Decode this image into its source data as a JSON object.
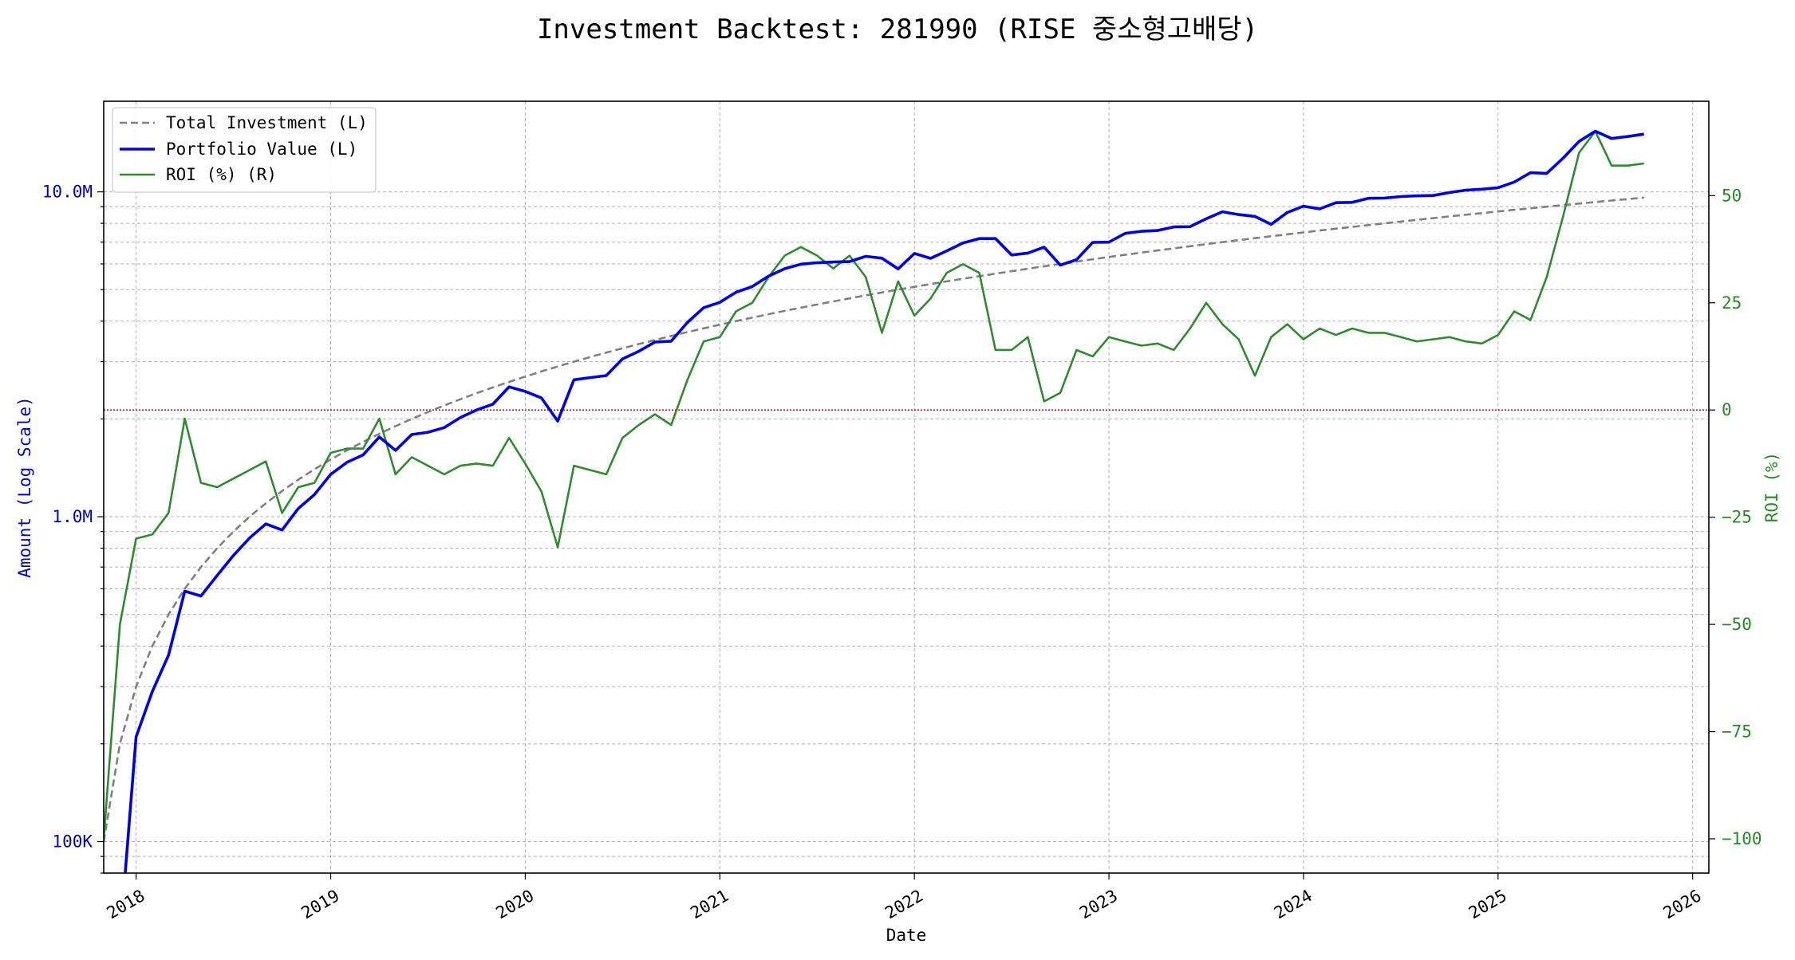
{
  "colors": {
    "left_axis": "#0000cc",
    "right_axis": "#228B22",
    "investment": "#808080",
    "portfolio": "#0000e6",
    "roi": "#2e8b2e",
    "zero_line": "#b22222",
    "grid": "#b0b0b0"
  },
  "chart_data": {
    "type": "line",
    "title": "Investment Backtest: 281990 (RISE 중소형고배당)",
    "xlabel": "Date",
    "ylabel_left": "Amount (Log Scale)",
    "ylabel_right": "ROI (%)",
    "x_ticks": [
      "2018",
      "2019",
      "2020",
      "2021",
      "2022",
      "2023",
      "2024",
      "2025",
      "2026"
    ],
    "y_left_scale": "log",
    "y_left_range": [
      80000,
      19000000
    ],
    "y_left_ticks": [
      {
        "value": 100000,
        "label": "100K"
      },
      {
        "value": 1000000,
        "label": "1.0M"
      },
      {
        "value": 10000000,
        "label": "10.0M"
      }
    ],
    "y_right_range": [
      -108,
      72
    ],
    "y_right_ticks": [
      {
        "value": -100,
        "label": "−100"
      },
      {
        "value": -75,
        "label": "−75"
      },
      {
        "value": -50,
        "label": "−50"
      },
      {
        "value": -25,
        "label": "−25"
      },
      {
        "value": 0,
        "label": "0"
      },
      {
        "value": 25,
        "label": "25"
      },
      {
        "value": 50,
        "label": "50"
      }
    ],
    "grid": true,
    "legend_position": "top-left",
    "x": [
      "2017-11",
      "2017-12",
      "2018-01",
      "2018-02",
      "2018-03",
      "2018-04",
      "2018-05",
      "2018-06",
      "2018-07",
      "2018-08",
      "2018-09",
      "2018-10",
      "2018-11",
      "2018-12",
      "2019-01",
      "2019-02",
      "2019-03",
      "2019-04",
      "2019-05",
      "2019-06",
      "2019-07",
      "2019-08",
      "2019-09",
      "2019-10",
      "2019-11",
      "2019-12",
      "2020-01",
      "2020-02",
      "2020-03",
      "2020-04",
      "2020-05",
      "2020-06",
      "2020-07",
      "2020-08",
      "2020-09",
      "2020-10",
      "2020-11",
      "2020-12",
      "2021-01",
      "2021-02",
      "2021-03",
      "2021-04",
      "2021-05",
      "2021-06",
      "2021-07",
      "2021-08",
      "2021-09",
      "2021-10",
      "2021-11",
      "2021-12",
      "2022-01",
      "2022-02",
      "2022-03",
      "2022-04",
      "2022-05",
      "2022-06",
      "2022-07",
      "2022-08",
      "2022-09",
      "2022-10",
      "2022-11",
      "2022-12",
      "2023-01",
      "2023-02",
      "2023-03",
      "2023-04",
      "2023-05",
      "2023-06",
      "2023-07",
      "2023-08",
      "2023-09",
      "2023-10",
      "2023-11",
      "2023-12",
      "2024-01",
      "2024-02",
      "2024-03",
      "2024-04",
      "2024-05",
      "2024-06",
      "2024-07",
      "2024-08",
      "2024-09",
      "2024-10",
      "2024-11",
      "2024-12",
      "2025-01",
      "2025-02",
      "2025-03",
      "2025-04",
      "2025-05",
      "2025-06",
      "2025-07",
      "2025-08",
      "2025-09",
      "2025-10"
    ],
    "series": [
      {
        "name": "Total Investment (L)",
        "axis": "left",
        "style": "dashed",
        "values": [
          100000,
          200000,
          300000,
          400000,
          500000,
          600000,
          700000,
          800000,
          900000,
          1000000,
          1100000,
          1200000,
          1300000,
          1400000,
          1500000,
          1600000,
          1700000,
          1800000,
          1900000,
          2000000,
          2100000,
          2200000,
          2300000,
          2400000,
          2500000,
          2600000,
          2700000,
          2800000,
          2900000,
          3000000,
          3100000,
          3200000,
          3300000,
          3400000,
          3500000,
          3600000,
          3700000,
          3800000,
          3900000,
          4000000,
          4100000,
          4200000,
          4300000,
          4400000,
          4500000,
          4600000,
          4700000,
          4800000,
          4900000,
          5000000,
          5100000,
          5200000,
          5300000,
          5400000,
          5500000,
          5600000,
          5700000,
          5800000,
          5900000,
          6000000,
          6100000,
          6200000,
          6300000,
          6400000,
          6500000,
          6600000,
          6700000,
          6800000,
          6900000,
          7000000,
          7100000,
          7200000,
          7300000,
          7400000,
          7500000,
          7600000,
          7700000,
          7800000,
          7900000,
          8000000,
          8100000,
          8200000,
          8300000,
          8400000,
          8500000,
          8600000,
          8700000,
          8800000,
          8900000,
          9000000,
          9100000,
          9200000,
          9300000,
          9400000,
          9500000,
          9600000
        ]
      },
      {
        "name": "Portfolio Value (L)",
        "axis": "left",
        "style": "solid",
        "values": [
          null,
          50000,
          210000,
          290000,
          375000,
          590000,
          570000,
          660000,
          760000,
          860000,
          950000,
          910000,
          1060000,
          1170000,
          1350000,
          1470000,
          1550000,
          1760000,
          1600000,
          1790000,
          1820000,
          1880000,
          2020000,
          2130000,
          2220000,
          2510000,
          2430000,
          2320000,
          1970000,
          2640000,
          2680000,
          2720000,
          3060000,
          3230000,
          3450000,
          3470000,
          3960000,
          4400000,
          4570000,
          4910000,
          5110000,
          5500000,
          5800000,
          5990000,
          6050000,
          6080000,
          6100000,
          6330000,
          6250000,
          5790000,
          6460000,
          6240000,
          6580000,
          6960000,
          7180000,
          7180000,
          6390000,
          6480000,
          6760000,
          5950000,
          6180000,
          6990000,
          7000000,
          7450000,
          7560000,
          7600000,
          7800000,
          7810000,
          8260000,
          8680000,
          8510000,
          8400000,
          7940000,
          8640000,
          9030000,
          8860000,
          9260000,
          9280000,
          9550000,
          9570000,
          9670000,
          9720000,
          9740000,
          9950000,
          10120000,
          10190000,
          10300000,
          10720000,
          11450000,
          11400000,
          12680000,
          14300000,
          15370000,
          14590000,
          14800000,
          15050000
        ]
      },
      {
        "name": "ROI (%) (R)",
        "axis": "right",
        "style": "solid",
        "values": [
          -100,
          -50,
          -30,
          -29,
          -24,
          -2,
          -17,
          -18,
          -16,
          -14,
          -12,
          -24,
          -18,
          -17,
          -10,
          -9,
          -9,
          -2,
          -15,
          -11,
          -13,
          -15,
          -13,
          -12.5,
          -13,
          -6.5,
          -12.5,
          -19,
          -32,
          -13,
          -14,
          -15,
          -6.5,
          -3.5,
          -1,
          -3.5,
          7,
          16,
          17,
          23,
          25,
          31,
          36,
          38,
          36,
          33,
          36,
          31,
          18,
          30,
          22,
          26,
          32,
          34,
          32,
          14,
          14,
          17,
          2,
          4,
          14,
          12.5,
          17,
          16,
          15,
          15.5,
          14,
          19,
          25,
          20,
          16.5,
          8,
          17,
          20,
          16.5,
          19,
          17.5,
          19,
          18,
          18,
          17,
          16,
          16.5,
          17,
          16,
          15.5,
          17.5,
          23,
          21,
          31,
          45,
          60,
          65,
          57,
          57,
          57.5
        ]
      }
    ]
  }
}
